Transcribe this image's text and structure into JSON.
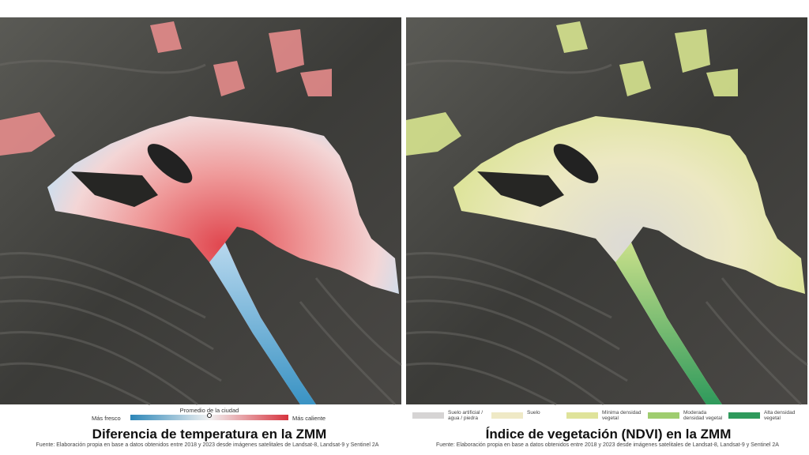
{
  "left_map": {
    "legend": {
      "center_label": "Promedio de la ciudad",
      "low_label": "Más fresco",
      "high_label": "Más caliente"
    },
    "title": "Diferencia de temperatura en la ZMM",
    "source": "Fuente: Elaboración propia en base a datos obtenidos entre 2018 y 2023 desde imágenes satelitales de Landsat-8, Landsat-9 y Sentinel 2A"
  },
  "right_map": {
    "legend": {
      "items": [
        {
          "label": "Suelo artificial / agua / piedra",
          "color": "#d6d4d4"
        },
        {
          "label": "Suelo",
          "color": "#efe9c6"
        },
        {
          "label": "Mínima densidad vegetal",
          "color": "#dfe39a"
        },
        {
          "label": "Moderada densidad vegetal",
          "color": "#9fcd6f"
        },
        {
          "label": "Alta densidad vegetal",
          "color": "#2f9a5c"
        }
      ]
    },
    "title": "Índice de vegetación (NDVI) en la ZMM",
    "source": "Fuente: Elaboración propia en base a datos obtenidos entre 2018 y 2023 desde imágenes satelitales de Landsat-8, Landsat-9 y Sentinel 2A"
  }
}
